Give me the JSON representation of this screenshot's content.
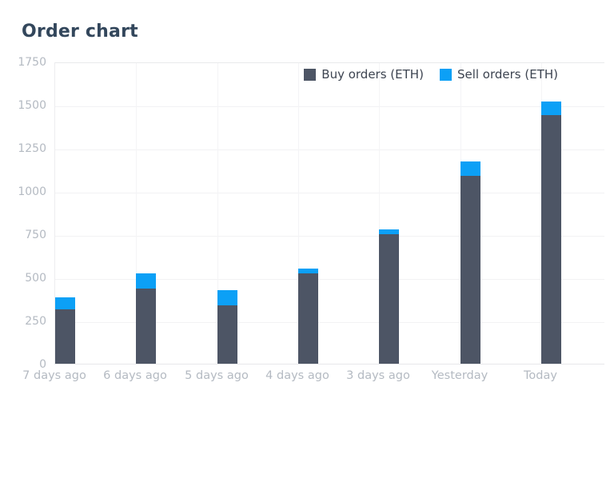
{
  "title": "Order chart",
  "chart_data": {
    "type": "bar",
    "stacked": true,
    "title": "Order chart",
    "xlabel": "",
    "ylabel": "",
    "categories": [
      "7 days ago",
      "6 days ago",
      "5 days ago",
      "4 days ago",
      "3 days ago",
      "Yesterday",
      "Today"
    ],
    "series": [
      {
        "name": "Buy orders (ETH)",
        "color": "#4d5565",
        "values": [
          315,
          435,
          335,
          520,
          750,
          1085,
          1440
        ]
      },
      {
        "name": "Sell orders (ETH)",
        "color": "#0ca0f6",
        "values": [
          70,
          90,
          90,
          30,
          30,
          85,
          80
        ]
      }
    ],
    "totals": [
      385,
      525,
      425,
      550,
      780,
      1170,
      1520
    ],
    "ylim": [
      0,
      1750
    ],
    "yticks": [
      0,
      250,
      500,
      750,
      1000,
      1250,
      1500,
      1750
    ],
    "grid": true,
    "legend_position": "top-right"
  },
  "colors": {
    "title_text": "#33475c",
    "axis_label": "#b4bac2",
    "gridline": "#f2f2f4",
    "plot_border": "#e9eaec",
    "legend_text": "#3d4451",
    "buy_bar": "#4d5565",
    "sell_bar": "#0ca0f6",
    "background": "#ffffff"
  }
}
